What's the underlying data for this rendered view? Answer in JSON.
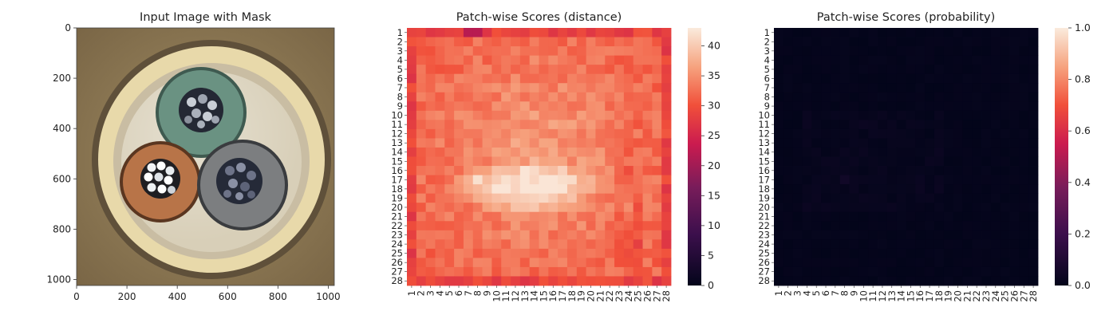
{
  "chart_data": [
    {
      "type": "image",
      "title": "Input Image with Mask",
      "xlim": [
        0,
        1024
      ],
      "ylim": [
        1024,
        0
      ],
      "xticks": [
        "0",
        "200",
        "400",
        "600",
        "800",
        "1000"
      ],
      "yticks": [
        "0",
        "200",
        "400",
        "600",
        "800",
        "1000"
      ],
      "xtick_values": [
        0,
        200,
        400,
        600,
        800,
        1000
      ],
      "ytick_values": [
        0,
        200,
        400,
        600,
        800,
        1000
      ],
      "content": "cable cross-section photo with three insulated conductors (green, brown, grey)",
      "colors": {
        "background": "#8e7a55",
        "outer_ring": "#e6d6a6",
        "insulation_fill": "#cbbfa4",
        "conductor_green": "#5f8a78",
        "conductor_brown": "#b26e3e",
        "conductor_grey": "#727476",
        "strands_dark": "#2b2f3a",
        "strands_silver": "#e8ecef"
      }
    },
    {
      "type": "heatmap",
      "title": "Patch-wise Scores (distance)",
      "rows": 28,
      "cols": 28,
      "row_labels": [
        "1",
        "2",
        "3",
        "4",
        "5",
        "6",
        "7",
        "8",
        "9",
        "10",
        "11",
        "12",
        "13",
        "14",
        "15",
        "16",
        "17",
        "18",
        "19",
        "20",
        "21",
        "22",
        "23",
        "24",
        "25",
        "26",
        "27",
        "28"
      ],
      "col_labels": [
        "1",
        "2",
        "3",
        "4",
        "5",
        "6",
        "7",
        "8",
        "9",
        "10",
        "11",
        "12",
        "13",
        "14",
        "15",
        "16",
        "17",
        "18",
        "19",
        "20",
        "21",
        "22",
        "23",
        "24",
        "25",
        "26",
        "27",
        "28"
      ],
      "colormap": "rocket",
      "vmin": 0,
      "vmax": 43,
      "colorbar_ticks": [
        "0",
        "5",
        "10",
        "15",
        "20",
        "25",
        "30",
        "35",
        "40"
      ],
      "colorbar_tick_values": [
        0,
        5,
        10,
        15,
        20,
        25,
        30,
        35,
        40
      ],
      "value_range_observed": [
        22,
        42
      ],
      "features": [
        {
          "row": 17,
          "col": 8,
          "value": 42
        },
        {
          "row": 1,
          "col": 7,
          "value": 22
        },
        {
          "row": 1,
          "col": 8,
          "value": 22
        }
      ]
    },
    {
      "type": "heatmap",
      "title": "Patch-wise Scores (probability)",
      "rows": 28,
      "cols": 28,
      "row_labels": [
        "1",
        "2",
        "3",
        "4",
        "5",
        "6",
        "7",
        "8",
        "9",
        "10",
        "11",
        "12",
        "13",
        "14",
        "15",
        "16",
        "17",
        "18",
        "19",
        "20",
        "21",
        "22",
        "23",
        "24",
        "25",
        "26",
        "27",
        "28"
      ],
      "col_labels": [
        "1",
        "2",
        "3",
        "4",
        "5",
        "6",
        "7",
        "8",
        "9",
        "10",
        "11",
        "12",
        "13",
        "14",
        "15",
        "16",
        "17",
        "18",
        "19",
        "20",
        "21",
        "22",
        "23",
        "24",
        "25",
        "26",
        "27",
        "28"
      ],
      "colormap": "rocket",
      "vmin": 0,
      "vmax": 1,
      "colorbar_ticks": [
        "0.0",
        "0.2",
        "0.4",
        "0.6",
        "0.8",
        "1.0"
      ],
      "colorbar_tick_values": [
        0.0,
        0.2,
        0.4,
        0.6,
        0.8,
        1.0
      ],
      "value_range_observed": [
        0.0,
        0.05
      ],
      "features": [
        {
          "row": 17,
          "col": 8,
          "value": 0.05
        }
      ]
    }
  ]
}
